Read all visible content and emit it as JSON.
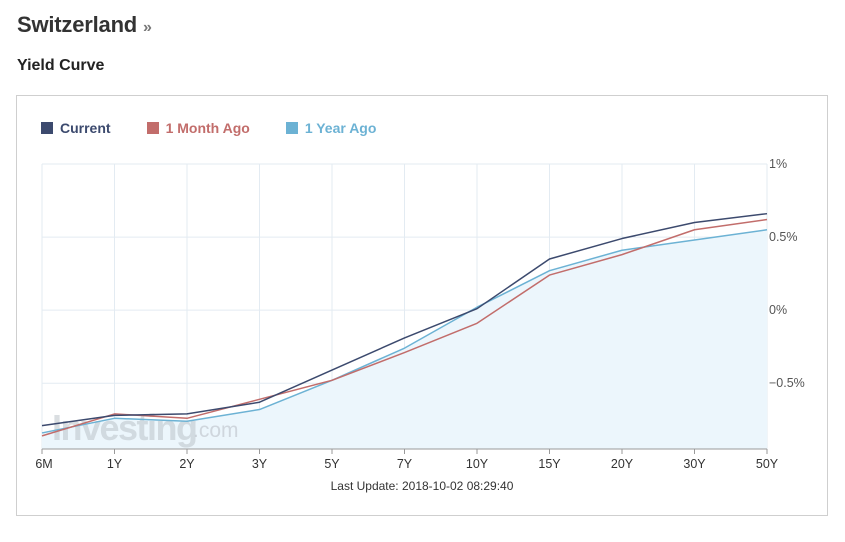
{
  "header": {
    "title": "Switzerland",
    "chevron": "»",
    "subtitle": "Yield Curve"
  },
  "watermark": {
    "text": "Investing",
    "suffix": ".com"
  },
  "last_update": "Last Update: 2018-10-02 08:29:40",
  "colors": {
    "current": "#3c4a6e",
    "month": "#c26d6b",
    "year": "#6cb2d4",
    "area": "#ecf6fc",
    "grid": "#e3ebf2"
  },
  "chart_data": {
    "type": "line",
    "categories": [
      "6M",
      "1Y",
      "2Y",
      "3Y",
      "5Y",
      "7Y",
      "10Y",
      "15Y",
      "20Y",
      "30Y",
      "50Y"
    ],
    "ylim": [
      -0.95,
      1.0
    ],
    "y_ticks": [
      -0.5,
      0,
      0.5,
      1
    ],
    "y_tick_labels": [
      "−0.5%",
      "0%",
      "0.5%",
      "1%"
    ],
    "y_axis_position": "right",
    "grid": true,
    "legend_position": "top-left",
    "series": [
      {
        "name": "Current",
        "color_key": "current",
        "values": [
          -0.79,
          -0.72,
          -0.71,
          -0.63,
          -0.41,
          -0.19,
          0.01,
          0.35,
          0.49,
          0.6,
          0.66
        ]
      },
      {
        "name": "1 Month Ago",
        "color_key": "month",
        "values": [
          -0.86,
          -0.71,
          -0.74,
          -0.61,
          -0.48,
          -0.29,
          -0.09,
          0.24,
          0.38,
          0.55,
          0.62
        ]
      },
      {
        "name": "1 Year Ago",
        "color_key": "year",
        "values": [
          -0.84,
          -0.74,
          -0.76,
          -0.68,
          -0.48,
          -0.26,
          0.02,
          0.27,
          0.41,
          0.48,
          0.55
        ]
      }
    ]
  }
}
